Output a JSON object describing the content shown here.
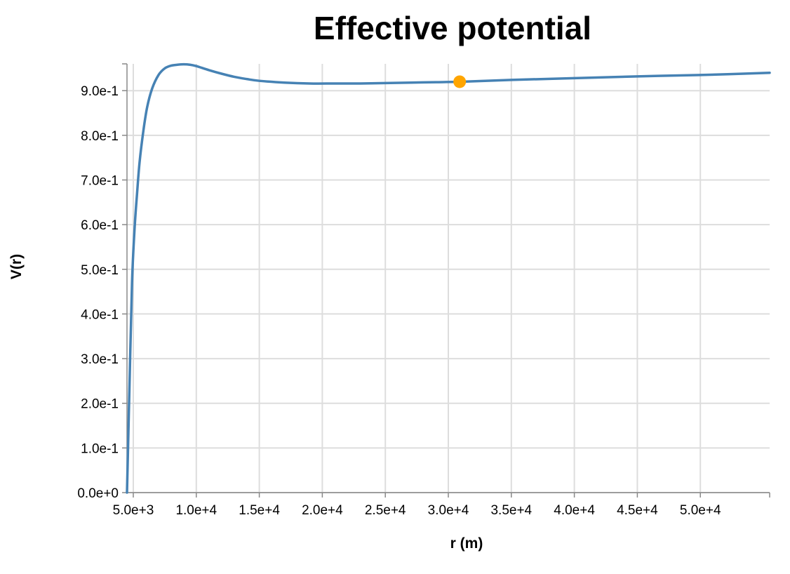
{
  "chart_data": {
    "type": "line",
    "title": "Effective potential",
    "xlabel": "r (m)",
    "ylabel": "V(r)",
    "xlim": [
      4500,
      55500
    ],
    "ylim": [
      0,
      0.96
    ],
    "grid": true,
    "x_ticks": [
      5000,
      10000,
      15000,
      20000,
      25000,
      30000,
      35000,
      40000,
      45000,
      50000
    ],
    "x_tick_labels": [
      "5.0e+3",
      "1.0e+4",
      "1.5e+4",
      "2.0e+4",
      "2.5e+4",
      "3.0e+4",
      "3.5e+4",
      "4.0e+4",
      "4.5e+4",
      "5.0e+4"
    ],
    "y_ticks": [
      0,
      0.1,
      0.2,
      0.3,
      0.4,
      0.5,
      0.6,
      0.7,
      0.8,
      0.9
    ],
    "y_tick_labels": [
      "0.0e+0",
      "1.0e-1",
      "2.0e-1",
      "3.0e-1",
      "4.0e-1",
      "5.0e-1",
      "6.0e-1",
      "7.0e-1",
      "8.0e-1",
      "9.0e-1"
    ],
    "series": [
      {
        "color": "#4682b4",
        "x": [
          4500,
          4700,
          4900,
          5100,
          5300,
          5500,
          5800,
          6100,
          6500,
          7000,
          7500,
          8000,
          8500,
          9000,
          9500,
          10000,
          11000,
          12000,
          13000,
          14000,
          15000,
          17000,
          19000,
          21000,
          23000,
          25000,
          27000,
          29000,
          31000,
          35000,
          40000,
          45000,
          50000,
          55500
        ],
        "y": [
          0.0,
          0.24,
          0.47,
          0.59,
          0.67,
          0.74,
          0.81,
          0.863,
          0.905,
          0.935,
          0.95,
          0.956,
          0.958,
          0.959,
          0.958,
          0.955,
          0.946,
          0.938,
          0.931,
          0.926,
          0.922,
          0.918,
          0.916,
          0.916,
          0.916,
          0.917,
          0.918,
          0.919,
          0.92,
          0.924,
          0.928,
          0.932,
          0.935,
          0.94
        ]
      }
    ],
    "markers": [
      {
        "x": 30900,
        "y": 0.92,
        "color": "#ffa500"
      }
    ]
  }
}
